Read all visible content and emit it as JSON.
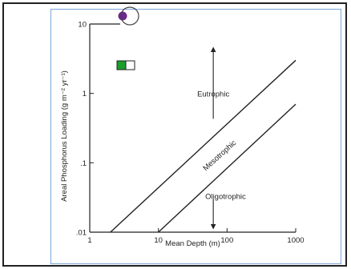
{
  "chart_data": {
    "type": "line",
    "xlabel": "Mean Depth (m)",
    "ylabel": "Areal Phosphorus Loading (g m⁻² yr⁻¹)",
    "x_scale": "log",
    "y_scale": "log",
    "xlim": [
      1,
      1000
    ],
    "ylim": [
      0.01,
      10
    ],
    "x_ticks": [
      {
        "value": 1,
        "label": "1"
      },
      {
        "value": 10,
        "label": "10"
      },
      {
        "value": 100,
        "label": "100"
      },
      {
        "value": 1000,
        "label": "1000"
      }
    ],
    "y_ticks": [
      {
        "value": 10,
        "label": "10"
      },
      {
        "value": 1,
        "label": "1"
      },
      {
        "value": 0.1,
        "label": ".1"
      },
      {
        "value": 0.01,
        "label": ".01"
      }
    ],
    "series": [
      {
        "x": [
          2,
          1000
        ],
        "y": [
          0.01,
          3.0
        ]
      },
      {
        "x": [
          10,
          1000
        ],
        "y": [
          0.01,
          0.7
        ]
      }
    ],
    "annotations": [
      {
        "text": "Eutrophic",
        "x": 63,
        "y": 0.9
      },
      {
        "text": "Mesotrophic",
        "x": 82,
        "y": 0.12,
        "rotation": -42
      },
      {
        "text": "Oligotrophic",
        "x": 95,
        "y": 0.03
      }
    ],
    "arrows": [
      {
        "x": 63,
        "y_from": 0.43,
        "y_to": 4.3
      },
      {
        "x": 63,
        "y_from": 0.03,
        "y_to": 0.012
      }
    ],
    "grid": false
  },
  "ui": {
    "toggle_on_color": "#1a9e2c",
    "toggle_off_color": "#ffffff",
    "dot_color": "#6a2a8c"
  }
}
